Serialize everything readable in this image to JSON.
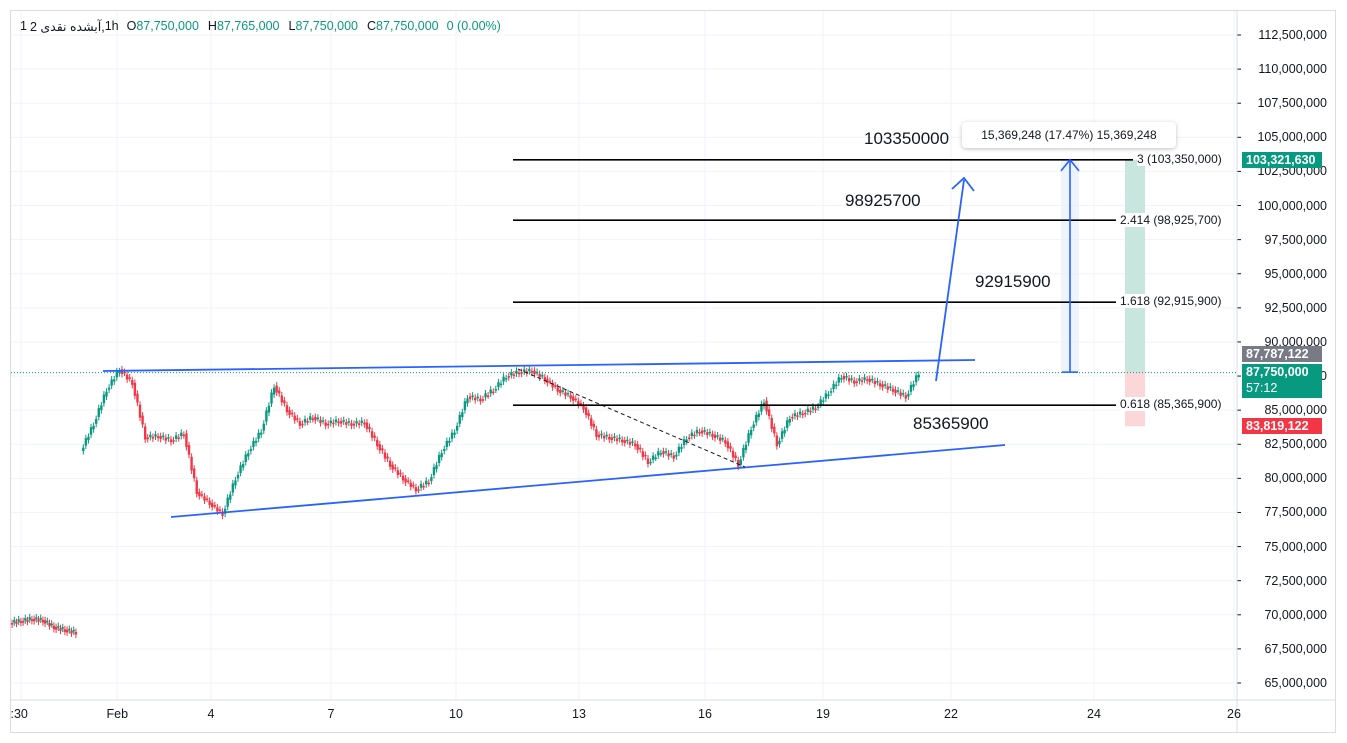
{
  "legend": {
    "interval": "1h",
    "title": "آبشده نقدی 2,",
    "interval_count": "1",
    "open_label": "O",
    "open": "87,750,000",
    "high_label": "H",
    "high": "87,765,000",
    "low_label": "L",
    "low": "87,750,000",
    "close_label": "C",
    "close": "87,750,000",
    "change": "0 (0.00%)"
  },
  "colors": {
    "up": "#089981",
    "down": "#f23645",
    "trendline": "#2962ff",
    "fib_line": "#000000",
    "grid": "#f0f3fa",
    "target_zone": "#c8e6dd",
    "stop_zone": "#fbd7da"
  },
  "price_axis": {
    "ticks": [
      "112,500,000",
      "110,000,000",
      "107,500,000",
      "105,000,000",
      "102,500,000",
      "100,000,000",
      "97,500,000",
      "95,000,000",
      "92,500,000",
      "90,000,000",
      "87,500,000",
      "85,000,000",
      "82,500,000",
      "80,000,000",
      "77,500,000",
      "75,000,000",
      "72,500,000",
      "70,000,000",
      "67,500,000",
      "65,000,000"
    ]
  },
  "time_axis": {
    "ticks": [
      ":30",
      "Feb",
      "4",
      "7",
      "10",
      "13",
      "16",
      "19",
      "22",
      "24",
      "26"
    ]
  },
  "badges": {
    "target": "103,321,630",
    "level": "87,787,122",
    "last_price": "87,750,000",
    "countdown": "57:12",
    "stop": "83,819,122"
  },
  "fib_levels": [
    {
      "ratio": "3",
      "price": "103,350,000"
    },
    {
      "ratio": "2.414",
      "price": "98,925,700"
    },
    {
      "ratio": "1.618",
      "price": "92,915,900"
    },
    {
      "ratio": "0.618",
      "price": "85,365,900"
    }
  ],
  "annotations": {
    "target_3": "103350000",
    "target_2414": "98925700",
    "target_1618": "92915900",
    "target_0618": "85365900"
  },
  "measure": {
    "text": "15,369,248 (17.47%) 15,369,248"
  },
  "chart_data": {
    "type": "candlestick",
    "title": "",
    "ylim": [
      64000000,
      113500000
    ],
    "price_path": [
      [
        0,
        69400000
      ],
      [
        1,
        69550000
      ],
      [
        2,
        69700000
      ],
      [
        3,
        69600000
      ],
      [
        4,
        69100000
      ],
      [
        5,
        68900000
      ],
      [
        6,
        68700000
      ],
      [
        7,
        82000000
      ],
      [
        8,
        84000000
      ],
      [
        9,
        86500000
      ],
      [
        10,
        88000000
      ],
      [
        11,
        87000000
      ],
      [
        12,
        83000000
      ],
      [
        13,
        83100000
      ],
      [
        14,
        82800000
      ],
      [
        15,
        83300000
      ],
      [
        16,
        79000000
      ],
      [
        17,
        78200000
      ],
      [
        18,
        77400000
      ],
      [
        19,
        80000000
      ],
      [
        20,
        82000000
      ],
      [
        21,
        83500000
      ],
      [
        22,
        86800000
      ],
      [
        23,
        85000000
      ],
      [
        24,
        84000000
      ],
      [
        25,
        84500000
      ],
      [
        26,
        84000000
      ],
      [
        27,
        84200000
      ],
      [
        28,
        84000000
      ],
      [
        29,
        84100000
      ],
      [
        30,
        82500000
      ],
      [
        31,
        81000000
      ],
      [
        32,
        80000000
      ],
      [
        33,
        79200000
      ],
      [
        34,
        79800000
      ],
      [
        35,
        82000000
      ],
      [
        36,
        83500000
      ],
      [
        37,
        86000000
      ],
      [
        38,
        85800000
      ],
      [
        39,
        86500000
      ],
      [
        40,
        87500000
      ],
      [
        41,
        87800000
      ],
      [
        42,
        87900000
      ],
      [
        43,
        87300000
      ],
      [
        44,
        86500000
      ],
      [
        45,
        86000000
      ],
      [
        46,
        85200000
      ],
      [
        47,
        83200000
      ],
      [
        48,
        83000000
      ],
      [
        49,
        82800000
      ],
      [
        50,
        82500000
      ],
      [
        51,
        81200000
      ],
      [
        52,
        82000000
      ],
      [
        53,
        81600000
      ],
      [
        54,
        83000000
      ],
      [
        55,
        83500000
      ],
      [
        56,
        83200000
      ],
      [
        57,
        82700000
      ],
      [
        58,
        81000000
      ],
      [
        59,
        83700000
      ],
      [
        60,
        85700000
      ],
      [
        61,
        82500000
      ],
      [
        62,
        84500000
      ],
      [
        63,
        84800000
      ],
      [
        64,
        85200000
      ],
      [
        65,
        86300000
      ],
      [
        66,
        87500000
      ],
      [
        67,
        87100000
      ],
      [
        68,
        87300000
      ],
      [
        69,
        86900000
      ],
      [
        70,
        86500000
      ],
      [
        71,
        86000000
      ],
      [
        72,
        87750000
      ]
    ]
  }
}
